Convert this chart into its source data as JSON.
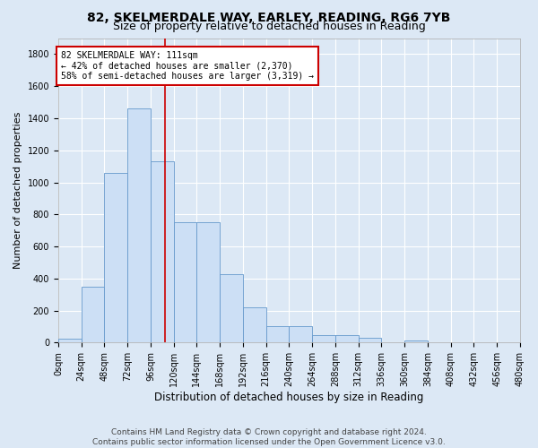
{
  "title": "82, SKELMERDALE WAY, EARLEY, READING, RG6 7YB",
  "subtitle": "Size of property relative to detached houses in Reading",
  "xlabel": "Distribution of detached houses by size in Reading",
  "ylabel": "Number of detached properties",
  "bar_color": "#ccdff5",
  "bar_edge_color": "#6699cc",
  "background_color": "#dce8f5",
  "grid_color": "#ffffff",
  "vline_color": "#cc0000",
  "vline_x": 111,
  "annotation_line1": "82 SKELMERDALE WAY: 111sqm",
  "annotation_line2": "← 42% of detached houses are smaller (2,370)",
  "annotation_line3": "58% of semi-detached houses are larger (3,319) →",
  "annotation_box_color": "#ffffff",
  "annotation_box_edge": "#cc0000",
  "bin_edges": [
    0,
    24,
    48,
    72,
    96,
    120,
    144,
    168,
    192,
    216,
    240,
    264,
    288,
    312,
    336,
    360,
    384,
    408,
    432,
    456,
    480
  ],
  "bar_heights": [
    25,
    350,
    1060,
    1460,
    1130,
    750,
    750,
    430,
    220,
    105,
    105,
    50,
    45,
    30,
    0,
    15,
    0,
    0,
    0,
    0
  ],
  "ylim": [
    0,
    1900
  ],
  "yticks": [
    0,
    200,
    400,
    600,
    800,
    1000,
    1200,
    1400,
    1600,
    1800
  ],
  "footnote": "Contains HM Land Registry data © Crown copyright and database right 2024.\nContains public sector information licensed under the Open Government Licence v3.0.",
  "title_fontsize": 10,
  "subtitle_fontsize": 9,
  "xlabel_fontsize": 8.5,
  "ylabel_fontsize": 8,
  "tick_fontsize": 7,
  "footnote_fontsize": 6.5
}
